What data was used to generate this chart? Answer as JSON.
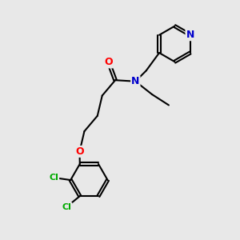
{
  "bg_color": "#e8e8e8",
  "bond_color": "#000000",
  "bond_width": 1.5,
  "atom_colors": {
    "O": "#ff0000",
    "N": "#0000cc",
    "Cl": "#00aa00",
    "C": "#000000"
  },
  "font_size_atom": 9,
  "font_size_cl": 8,
  "figsize": [
    3.0,
    3.0
  ],
  "dpi": 100
}
